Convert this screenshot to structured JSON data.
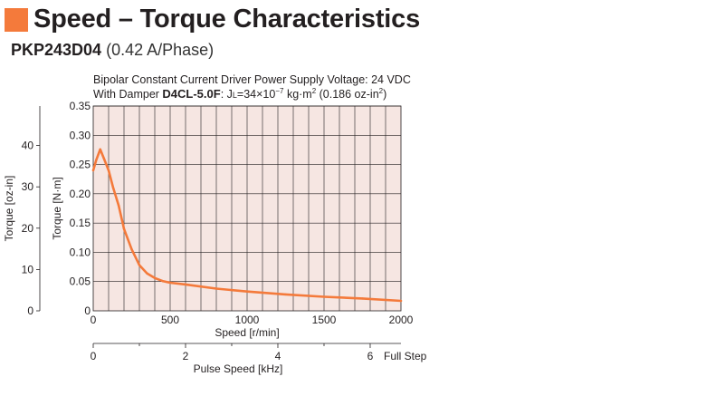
{
  "header": {
    "title": "Speed – Torque Characteristics",
    "model": "PKP243D04",
    "phase": "(0.42 A/Phase)"
  },
  "colors": {
    "accent": "#f47a3b",
    "grid_bg": "#f6e6e2",
    "curve": "#f47a3b",
    "axis": "#231f20"
  },
  "chart_data": {
    "type": "line",
    "annotation": {
      "line1": "Bipolar Constant Current Driver  Power Supply Voltage: 24 VDC",
      "line2_prefix": "With Damper ",
      "line2_damper": "D4CL-5.0F",
      "line2_suffix": ": J",
      "line2_sub": "L",
      "line2_mid": "=34×10",
      "line2_exp": "−7",
      "line2_unit": " kg·m",
      "line2_unit_exp": "2",
      "line2_alt": " (0.186 oz-in",
      "line2_alt_exp": "2",
      "line2_close": ")"
    },
    "x_axis": {
      "label": "Speed [r/min]",
      "min": 0,
      "max": 2000,
      "ticks": [
        0,
        500,
        1000,
        1500,
        2000
      ],
      "tick_labels": [
        "0",
        "500",
        "1000",
        "1500",
        "2000"
      ]
    },
    "x_axis_secondary": {
      "label": "Pulse Speed [kHz]",
      "end_label": "Full Step",
      "min": 0,
      "max": 6.667,
      "ticks": [
        0,
        2,
        4,
        6
      ],
      "tick_labels": [
        "0",
        "2",
        "4",
        "6"
      ],
      "minor_ticks": [
        1,
        3,
        5
      ]
    },
    "y_axis": {
      "label": "Torque [N·m]",
      "min": 0,
      "max": 0.35,
      "ticks": [
        0,
        0.05,
        0.1,
        0.15,
        0.2,
        0.25,
        0.3,
        0.35
      ],
      "tick_labels": [
        "0",
        "0.05",
        "0.10",
        "0.15",
        "0.20",
        "0.25",
        "0.30",
        "0.35"
      ]
    },
    "y_axis_secondary": {
      "label": "Torque [oz-in]",
      "ticks": [
        0,
        10,
        20,
        30,
        40
      ],
      "tick_labels": [
        "0",
        "10",
        "20",
        "30",
        "40"
      ],
      "oz_in_per_nm": 141.6
    },
    "grid": true,
    "x_minor_step": 100,
    "series": [
      {
        "x": [
          0,
          20,
          45,
          70,
          100,
          130,
          165,
          200,
          250,
          300,
          350,
          400,
          450,
          500,
          600,
          800,
          1000,
          1250,
          1500,
          1750,
          2000
        ],
        "values": [
          0.24,
          0.258,
          0.276,
          0.26,
          0.24,
          0.21,
          0.18,
          0.14,
          0.105,
          0.078,
          0.064,
          0.056,
          0.051,
          0.048,
          0.045,
          0.038,
          0.033,
          0.028,
          0.024,
          0.021,
          0.017
        ]
      }
    ]
  }
}
